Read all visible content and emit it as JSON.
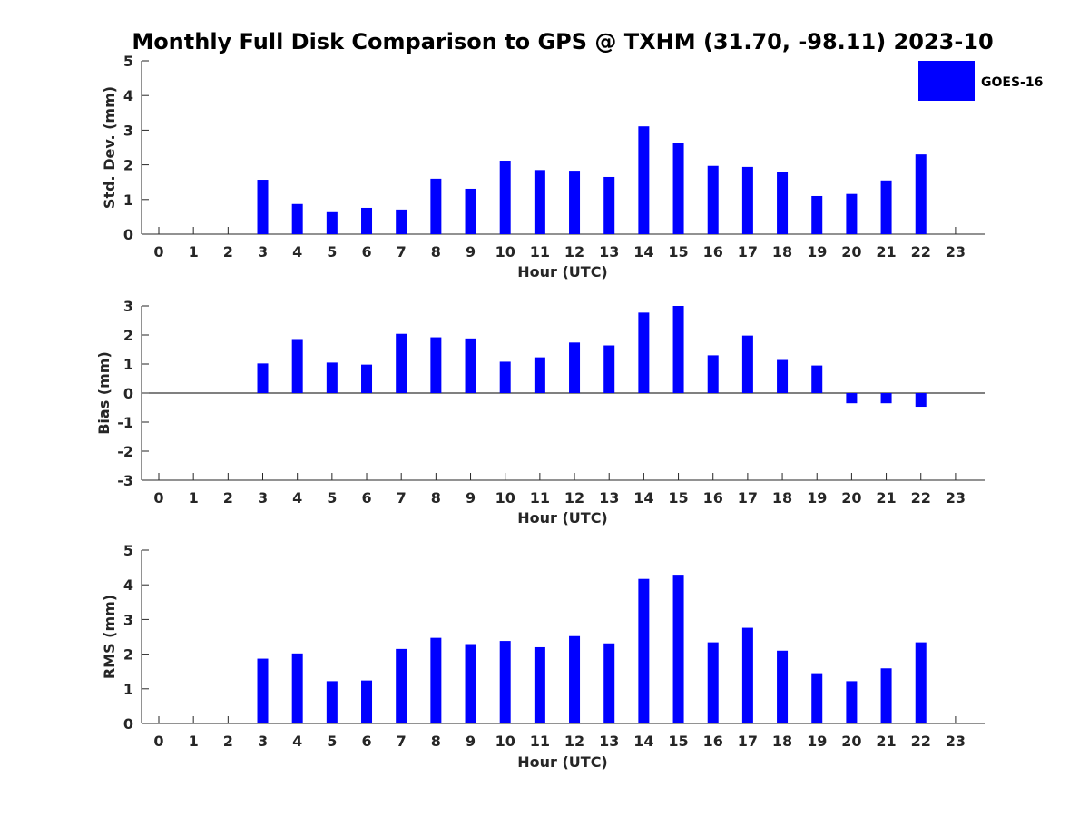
{
  "title": "Monthly Full Disk Comparison to GPS @ TXHM (31.70, -98.11) 2023-10",
  "legend": {
    "label": "GOES-16",
    "color": "#0000ff"
  },
  "chart_data": [
    {
      "type": "bar",
      "name": "std-dev",
      "title": "Monthly Full Disk Comparison to GPS @ TXHM (31.70, -98.11) 2023-10",
      "xlabel": "Hour (UTC)",
      "ylabel": "Std. Dev. (mm)",
      "categories": [
        "0",
        "1",
        "2",
        "3",
        "4",
        "5",
        "6",
        "7",
        "8",
        "9",
        "10",
        "11",
        "12",
        "13",
        "14",
        "15",
        "16",
        "17",
        "18",
        "19",
        "20",
        "21",
        "22",
        "23"
      ],
      "ylim": [
        0,
        5
      ],
      "yticks": [
        0,
        1,
        2,
        3,
        4,
        5
      ],
      "series": [
        {
          "name": "GOES-16",
          "values": [
            null,
            null,
            null,
            1.57,
            0.87,
            0.66,
            0.76,
            0.71,
            1.6,
            1.31,
            2.12,
            1.85,
            1.83,
            1.65,
            3.11,
            2.64,
            1.97,
            1.94,
            1.79,
            1.1,
            1.16,
            1.55,
            2.3,
            null
          ]
        }
      ]
    },
    {
      "type": "bar",
      "name": "bias",
      "xlabel": "Hour (UTC)",
      "ylabel": "Bias (mm)",
      "categories": [
        "0",
        "1",
        "2",
        "3",
        "4",
        "5",
        "6",
        "7",
        "8",
        "9",
        "10",
        "11",
        "12",
        "13",
        "14",
        "15",
        "16",
        "17",
        "18",
        "19",
        "20",
        "21",
        "22",
        "23"
      ],
      "ylim": [
        -3,
        3
      ],
      "yticks": [
        -3,
        -2,
        -1,
        0,
        1,
        2,
        3
      ],
      "series": [
        {
          "name": "GOES-16",
          "values": [
            null,
            null,
            null,
            1.02,
            1.86,
            1.05,
            0.98,
            2.04,
            1.92,
            1.88,
            1.08,
            1.23,
            1.74,
            1.64,
            2.77,
            3.0,
            1.3,
            1.98,
            1.14,
            0.95,
            -0.35,
            -0.35,
            -0.47,
            null
          ]
        }
      ]
    },
    {
      "type": "bar",
      "name": "rms",
      "xlabel": "Hour (UTC)",
      "ylabel": "RMS (mm)",
      "categories": [
        "0",
        "1",
        "2",
        "3",
        "4",
        "5",
        "6",
        "7",
        "8",
        "9",
        "10",
        "11",
        "12",
        "13",
        "14",
        "15",
        "16",
        "17",
        "18",
        "19",
        "20",
        "21",
        "22",
        "23"
      ],
      "ylim": [
        0,
        5
      ],
      "yticks": [
        0,
        1,
        2,
        3,
        4,
        5
      ],
      "series": [
        {
          "name": "GOES-16",
          "values": [
            null,
            null,
            null,
            1.87,
            2.02,
            1.22,
            1.24,
            2.15,
            2.47,
            2.29,
            2.38,
            2.2,
            2.52,
            2.31,
            4.17,
            4.29,
            2.34,
            2.76,
            2.1,
            1.45,
            1.22,
            1.59,
            2.34,
            null
          ]
        }
      ]
    }
  ]
}
